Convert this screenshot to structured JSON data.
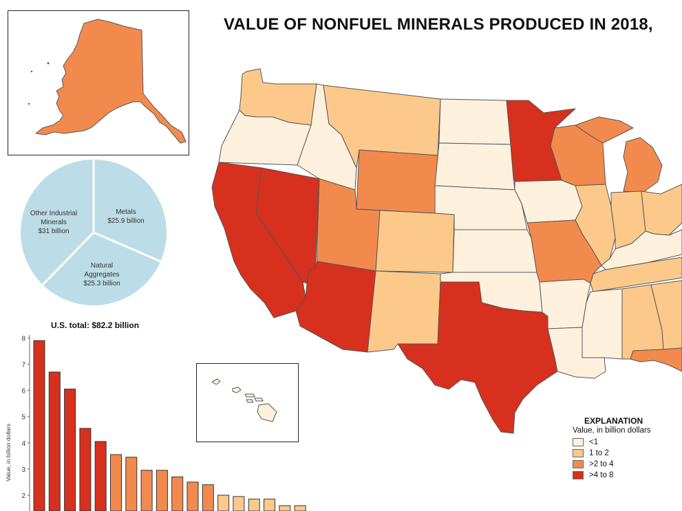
{
  "title": "VALUE OF NONFUEL MINERALS PRODUCED IN 2018,",
  "colors": {
    "lt1": "#fdf1dd",
    "b1to2": "#fcc98b",
    "b2to4": "#f28a4e",
    "b4to8": "#d7301f",
    "border": "#555555",
    "pie_fill": "#bcdde7",
    "pie_line": "#ffffff"
  },
  "pie": {
    "slices": [
      {
        "name": "Other Industrial Minerals",
        "label_lines": [
          "Other Industrial",
          "Minerals",
          "$31 billion"
        ],
        "value": 31
      },
      {
        "name": "Metals",
        "label_lines": [
          "Metals",
          "$25.9 billion"
        ],
        "value": 25.9
      },
      {
        "name": "Natural Aggregates",
        "label_lines": [
          "Natural",
          "Aggregates",
          "$25.3 billion"
        ],
        "value": 25.3
      }
    ],
    "total_label": "U.S. total: $82.2 billion"
  },
  "legend": {
    "title": "EXPLANATION",
    "subtitle": "Value, in billion dollars",
    "items": [
      {
        "label": "<1",
        "color": "#fdf1dd"
      },
      {
        "label": "1 to 2",
        "color": "#fcc98b"
      },
      {
        "label": ">2 to 4",
        "color": "#f28a4e"
      },
      {
        "label": ">4 to 8",
        "color": "#d7301f"
      }
    ]
  },
  "chart_data": {
    "type": "bar",
    "ylabel": "Value, in billion dollars",
    "ylim": [
      1.5,
      8
    ],
    "yticks": [
      "2",
      "3",
      "4",
      "5",
      "6",
      "7",
      "8"
    ],
    "values": [
      7.9,
      6.7,
      6.05,
      4.55,
      4.05,
      3.55,
      3.45,
      2.95,
      2.95,
      2.7,
      2.5,
      2.4,
      2.0,
      1.95,
      1.85,
      1.85,
      1.6,
      1.6
    ],
    "colors": [
      "#d7301f",
      "#d7301f",
      "#d7301f",
      "#d7301f",
      "#d7301f",
      "#f28a4e",
      "#f28a4e",
      "#f28a4e",
      "#f28a4e",
      "#f28a4e",
      "#f28a4e",
      "#f28a4e",
      "#fcc98b",
      "#fcc98b",
      "#fcc98b",
      "#fcc98b",
      "#fcc98b",
      "#fcc98b"
    ]
  },
  "regions": [
    {
      "name": "alaska",
      "band": ">2 to 4"
    },
    {
      "name": "washington",
      "band": "1 to 2"
    },
    {
      "name": "oregon",
      "band": "<1"
    },
    {
      "name": "california",
      "band": ">4 to 8"
    },
    {
      "name": "nevada",
      "band": ">4 to 8"
    },
    {
      "name": "idaho",
      "band": "<1"
    },
    {
      "name": "montana",
      "band": "1 to 2"
    },
    {
      "name": "wyoming",
      "band": ">2 to 4"
    },
    {
      "name": "utah",
      "band": ">2 to 4"
    },
    {
      "name": "arizona",
      "band": ">4 to 8"
    },
    {
      "name": "colorado",
      "band": "1 to 2"
    },
    {
      "name": "new-mexico",
      "band": "1 to 2"
    },
    {
      "name": "north-dakota",
      "band": "<1"
    },
    {
      "name": "south-dakota",
      "band": "<1"
    },
    {
      "name": "nebraska",
      "band": "<1"
    },
    {
      "name": "kansas",
      "band": "<1"
    },
    {
      "name": "oklahoma",
      "band": "<1"
    },
    {
      "name": "texas",
      "band": ">4 to 8"
    },
    {
      "name": "minnesota",
      "band": ">4 to 8"
    },
    {
      "name": "iowa",
      "band": "<1"
    },
    {
      "name": "missouri",
      "band": ">2 to 4"
    },
    {
      "name": "arkansas",
      "band": "<1"
    },
    {
      "name": "louisiana",
      "band": "<1"
    },
    {
      "name": "wisconsin",
      "band": ">2 to 4"
    },
    {
      "name": "michigan",
      "band": ">2 to 4"
    },
    {
      "name": "illinois",
      "band": "1 to 2"
    },
    {
      "name": "indiana",
      "band": "1 to 2"
    },
    {
      "name": "ohio",
      "band": "1 to 2"
    },
    {
      "name": "kentucky",
      "band": "<1"
    },
    {
      "name": "tennessee",
      "band": "1 to 2"
    },
    {
      "name": "mississippi",
      "band": "<1"
    },
    {
      "name": "alabama",
      "band": "1 to 2"
    },
    {
      "name": "georgia",
      "band": "1 to 2"
    },
    {
      "name": "florida",
      "band": ">2 to 4"
    },
    {
      "name": "hawaii",
      "band": "<1"
    }
  ]
}
